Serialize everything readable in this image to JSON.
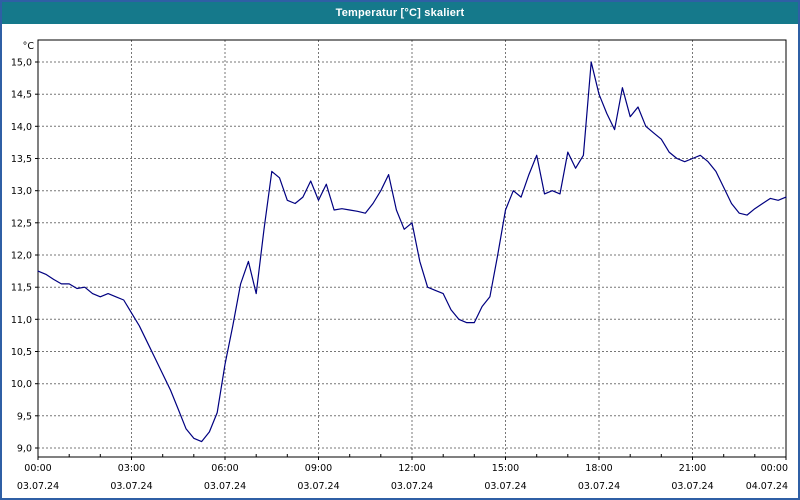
{
  "window": {
    "title": "Temperatur [°C] skaliert"
  },
  "chart_data": {
    "type": "line",
    "title": "Temperatur [°C] skaliert",
    "grid": true,
    "legend": "none",
    "y_axis": {
      "unit_label": "°C",
      "min": 9.0,
      "max": 15.0,
      "tick_step": 0.5,
      "tick_labels": [
        "9,0",
        "9,5",
        "10,0",
        "10,5",
        "11,0",
        "11,5",
        "12,0",
        "12,5",
        "13,0",
        "13,5",
        "14,0",
        "14,5",
        "15,0"
      ]
    },
    "x_axis": {
      "ticks": [
        {
          "hour": 0,
          "time": "00:00",
          "date": "03.07.24"
        },
        {
          "hour": 3,
          "time": "03:00",
          "date": "03.07.24"
        },
        {
          "hour": 6,
          "time": "06:00",
          "date": "03.07.24"
        },
        {
          "hour": 9,
          "time": "09:00",
          "date": "03.07.24"
        },
        {
          "hour": 12,
          "time": "12:00",
          "date": "03.07.24"
        },
        {
          "hour": 15,
          "time": "15:00",
          "date": "03.07.24"
        },
        {
          "hour": 18,
          "time": "18:00",
          "date": "03.07.24"
        },
        {
          "hour": 21,
          "time": "21:00",
          "date": "03.07.24"
        },
        {
          "hour": 24,
          "time": "00:00",
          "date": "04.07.24"
        }
      ],
      "minor_tick_every_hours": 1
    },
    "series": [
      {
        "name": "Temperatur",
        "color": "#000080",
        "points": [
          [
            0,
            11.75
          ],
          [
            0.25,
            11.7
          ],
          [
            0.5,
            11.62
          ],
          [
            0.75,
            11.55
          ],
          [
            1,
            11.55
          ],
          [
            1.25,
            11.48
          ],
          [
            1.5,
            11.5
          ],
          [
            1.75,
            11.4
          ],
          [
            2,
            11.35
          ],
          [
            2.25,
            11.4
          ],
          [
            2.5,
            11.35
          ],
          [
            2.75,
            11.3
          ],
          [
            3,
            11.1
          ],
          [
            3.25,
            10.9
          ],
          [
            3.5,
            10.65
          ],
          [
            3.75,
            10.4
          ],
          [
            4,
            10.15
          ],
          [
            4.25,
            9.9
          ],
          [
            4.5,
            9.6
          ],
          [
            4.75,
            9.3
          ],
          [
            5,
            9.15
          ],
          [
            5.25,
            9.1
          ],
          [
            5.5,
            9.25
          ],
          [
            5.75,
            9.55
          ],
          [
            6,
            10.3
          ],
          [
            6.25,
            10.9
          ],
          [
            6.5,
            11.55
          ],
          [
            6.75,
            11.9
          ],
          [
            7,
            11.4
          ],
          [
            7.25,
            12.4
          ],
          [
            7.5,
            13.3
          ],
          [
            7.75,
            13.2
          ],
          [
            8,
            12.85
          ],
          [
            8.25,
            12.8
          ],
          [
            8.5,
            12.9
          ],
          [
            8.75,
            13.15
          ],
          [
            9,
            12.85
          ],
          [
            9.25,
            13.1
          ],
          [
            9.5,
            12.7
          ],
          [
            9.75,
            12.72
          ],
          [
            10,
            12.7
          ],
          [
            10.25,
            12.68
          ],
          [
            10.5,
            12.65
          ],
          [
            10.75,
            12.8
          ],
          [
            11,
            13.0
          ],
          [
            11.25,
            13.25
          ],
          [
            11.5,
            12.7
          ],
          [
            11.75,
            12.4
          ],
          [
            12,
            12.5
          ],
          [
            12.25,
            11.9
          ],
          [
            12.5,
            11.5
          ],
          [
            12.75,
            11.45
          ],
          [
            13,
            11.4
          ],
          [
            13.25,
            11.15
          ],
          [
            13.5,
            11.0
          ],
          [
            13.75,
            10.95
          ],
          [
            14,
            10.95
          ],
          [
            14.25,
            11.2
          ],
          [
            14.5,
            11.35
          ],
          [
            14.75,
            12.0
          ],
          [
            15,
            12.7
          ],
          [
            15.25,
            13.0
          ],
          [
            15.5,
            12.9
          ],
          [
            15.75,
            13.25
          ],
          [
            16,
            13.55
          ],
          [
            16.25,
            12.95
          ],
          [
            16.5,
            13.0
          ],
          [
            16.75,
            12.95
          ],
          [
            17,
            13.6
          ],
          [
            17.25,
            13.35
          ],
          [
            17.5,
            13.55
          ],
          [
            17.75,
            15.0
          ],
          [
            18,
            14.5
          ],
          [
            18.25,
            14.2
          ],
          [
            18.5,
            13.95
          ],
          [
            18.75,
            14.6
          ],
          [
            19,
            14.15
          ],
          [
            19.25,
            14.3
          ],
          [
            19.5,
            14.0
          ],
          [
            19.75,
            13.9
          ],
          [
            20,
            13.8
          ],
          [
            20.25,
            13.6
          ],
          [
            20.5,
            13.5
          ],
          [
            20.75,
            13.45
          ],
          [
            21,
            13.5
          ],
          [
            21.25,
            13.55
          ],
          [
            21.5,
            13.45
          ],
          [
            21.75,
            13.3
          ],
          [
            22,
            13.05
          ],
          [
            22.25,
            12.8
          ],
          [
            22.5,
            12.65
          ],
          [
            22.75,
            12.62
          ],
          [
            23,
            12.72
          ],
          [
            23.25,
            12.8
          ],
          [
            23.5,
            12.88
          ],
          [
            23.75,
            12.85
          ],
          [
            24,
            12.9
          ]
        ]
      }
    ],
    "colors": {
      "line": "#000080",
      "grid": "#777777",
      "plot_border": "#000000",
      "titlebar_bg": "#15798b",
      "titlebar_text": "#ffffff",
      "window_border": "#2f5fa5",
      "background": "#ffffff",
      "axis_text": "#000000"
    }
  }
}
